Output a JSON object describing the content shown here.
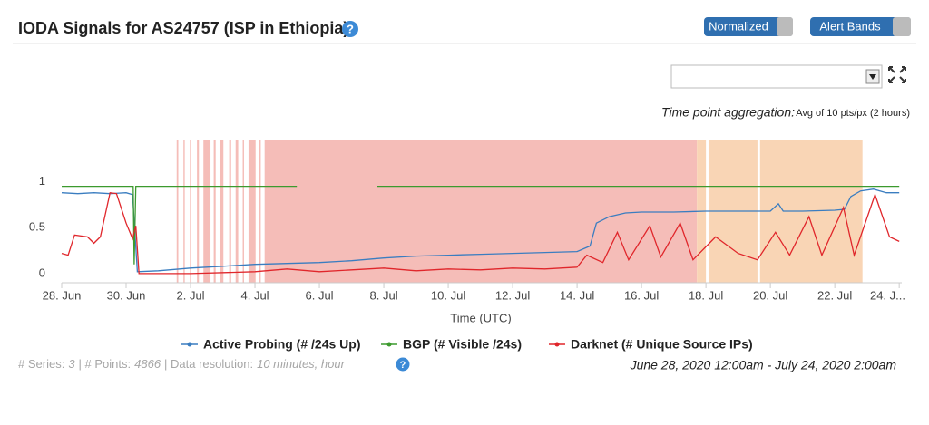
{
  "header": {
    "title": "IODA Signals for AS24757 (ISP in Ethiopia)",
    "help": "?",
    "buttons": [
      "Normalized",
      "Alert Bands"
    ]
  },
  "aggregation": {
    "label": "Time point aggregation:",
    "value": "Avg of 10 pts/px (2 hours)"
  },
  "chart_data": {
    "type": "line",
    "xlabel": "Time (UTC)",
    "xlim": [
      0,
      26.08
    ],
    "xticks": [
      {
        "value": 0,
        "label": "28. Jun"
      },
      {
        "value": 2,
        "label": "30. Jun"
      },
      {
        "value": 4,
        "label": "2. Jul"
      },
      {
        "value": 6,
        "label": "4. Jul"
      },
      {
        "value": 8,
        "label": "6. Jul"
      },
      {
        "value": 10,
        "label": "8. Jul"
      },
      {
        "value": 12,
        "label": "10. Jul"
      },
      {
        "value": 14,
        "label": "12. Jul"
      },
      {
        "value": 16,
        "label": "14. Jul"
      },
      {
        "value": 18,
        "label": "16. Jul"
      },
      {
        "value": 20,
        "label": "18. Jul"
      },
      {
        "value": 22,
        "label": "20. Jul"
      },
      {
        "value": 24,
        "label": "22. Jul"
      },
      {
        "value": 26,
        "label": "24. J..."
      }
    ],
    "ylim": [
      -0.1,
      1.45
    ],
    "yticks": [
      0,
      0.5,
      1
    ],
    "grid": false,
    "alert_bands": [
      {
        "start": 3.57,
        "end": 3.62,
        "color": "#f5bdb8"
      },
      {
        "start": 3.78,
        "end": 3.82,
        "color": "#f5bdb8"
      },
      {
        "start": 3.98,
        "end": 4.02,
        "color": "#f5bdb8"
      },
      {
        "start": 4.2,
        "end": 4.26,
        "color": "#f5bdb8"
      },
      {
        "start": 4.4,
        "end": 4.62,
        "color": "#f5bdb8"
      },
      {
        "start": 4.72,
        "end": 4.78,
        "color": "#f5bdb8"
      },
      {
        "start": 4.9,
        "end": 5.02,
        "color": "#f5bdb8"
      },
      {
        "start": 5.2,
        "end": 5.26,
        "color": "#f5bdb8"
      },
      {
        "start": 5.4,
        "end": 5.48,
        "color": "#f5bdb8"
      },
      {
        "start": 5.62,
        "end": 5.66,
        "color": "#f5bdb8"
      },
      {
        "start": 5.8,
        "end": 6.02,
        "color": "#f5bdb8"
      },
      {
        "start": 6.12,
        "end": 6.18,
        "color": "#f5bdb8"
      },
      {
        "start": 6.3,
        "end": 19.72,
        "color": "#f5bdb8"
      },
      {
        "start": 19.72,
        "end": 20.0,
        "color": "#f9d5b5"
      },
      {
        "start": 20.08,
        "end": 21.6,
        "color": "#f9d5b5"
      },
      {
        "start": 21.68,
        "end": 24.86,
        "color": "#f9d5b5"
      }
    ],
    "series": [
      {
        "name": "Active Probing (# /24s Up)",
        "color": "#3a7dc0",
        "x": [
          0,
          0.5,
          1,
          1.5,
          2.0,
          2.2,
          2.35,
          3,
          4,
          5,
          6,
          7,
          8,
          9,
          10,
          11,
          12,
          13,
          14,
          15,
          16,
          16.4,
          16.6,
          17,
          17.5,
          18,
          19,
          20,
          21,
          22,
          22.25,
          22.4,
          23,
          24,
          24.3,
          24.5,
          24.8,
          25.2,
          25.6,
          26
        ],
        "values": [
          0.88,
          0.87,
          0.88,
          0.87,
          0.88,
          0.86,
          0.02,
          0.03,
          0.06,
          0.08,
          0.1,
          0.11,
          0.12,
          0.14,
          0.17,
          0.19,
          0.2,
          0.21,
          0.22,
          0.23,
          0.24,
          0.3,
          0.55,
          0.62,
          0.66,
          0.67,
          0.67,
          0.68,
          0.68,
          0.68,
          0.76,
          0.68,
          0.68,
          0.69,
          0.7,
          0.84,
          0.9,
          0.92,
          0.88,
          0.88
        ]
      },
      {
        "name": "BGP (# Visible /24s)",
        "color": "#3c9a2e",
        "x": [
          0,
          2.22,
          2.25,
          2.3,
          7.3,
          8.5,
          9.8,
          26
        ],
        "values": [
          0.95,
          0.95,
          0.1,
          0.95,
          0.95,
          null,
          0.95,
          0.95
        ]
      },
      {
        "name": "Darknet (# Unique Source IPs)",
        "color": "#e0262b",
        "x": [
          0,
          0.2,
          0.4,
          0.8,
          1.0,
          1.2,
          1.5,
          1.7,
          2.0,
          2.2,
          2.3,
          2.4,
          4,
          6,
          7,
          8,
          9,
          10,
          11,
          12,
          13,
          14,
          15,
          16,
          16.3,
          16.8,
          17.25,
          17.6,
          18.26,
          18.6,
          19.2,
          19.6,
          20.3,
          21,
          21.6,
          22.16,
          22.6,
          23.2,
          23.6,
          24.27,
          24.6,
          25.25,
          25.7,
          26
        ],
        "values": [
          0.22,
          0.2,
          0.42,
          0.4,
          0.33,
          0.4,
          0.88,
          0.87,
          0.55,
          0.38,
          0.52,
          0.0,
          0.0,
          0.02,
          0.05,
          0.02,
          0.04,
          0.06,
          0.03,
          0.05,
          0.04,
          0.06,
          0.05,
          0.07,
          0.2,
          0.12,
          0.45,
          0.15,
          0.52,
          0.18,
          0.55,
          0.15,
          0.4,
          0.22,
          0.15,
          0.45,
          0.2,
          0.62,
          0.2,
          0.72,
          0.2,
          0.86,
          0.4,
          0.35
        ]
      }
    ]
  },
  "footer": {
    "parts": [
      {
        "text": "# Series:",
        "italic": false
      },
      {
        "text": "3",
        "italic": true
      },
      {
        "text": "| # Points:",
        "italic": false
      },
      {
        "text": "4866",
        "italic": true
      },
      {
        "text": "| Data resolution:",
        "italic": false
      },
      {
        "text": "10 minutes, hour",
        "italic": true
      }
    ],
    "help": "?",
    "range": "June 28, 2020 12:00am - July 24, 2020 2:00am"
  }
}
